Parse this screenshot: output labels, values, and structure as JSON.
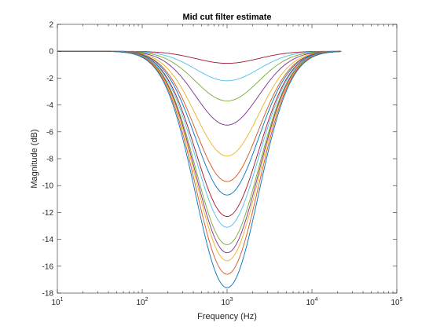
{
  "chart_data": {
    "type": "line",
    "title": "Mid cut filter estimate",
    "xlabel": "Frequency (Hz)",
    "ylabel": "Magnitude (dB)",
    "xscale": "log",
    "xlim": [
      10,
      100000
    ],
    "ylim": [
      -18,
      2
    ],
    "grid": false,
    "legend": "none",
    "xticks": [
      {
        "value": 10,
        "base": "10",
        "exp": "1"
      },
      {
        "value": 100,
        "base": "10",
        "exp": "2"
      },
      {
        "value": 1000,
        "base": "10",
        "exp": "3"
      },
      {
        "value": 10000,
        "base": "10",
        "exp": "4"
      },
      {
        "value": 100000,
        "base": "10",
        "exp": "5"
      }
    ],
    "yticks": [
      2,
      0,
      -2,
      -4,
      -6,
      -8,
      -10,
      -12,
      -14,
      -16,
      -18
    ],
    "x_start": 10,
    "x_end": 22050,
    "center_frequency": 1000,
    "series": [
      {
        "min_db": -0.9,
        "color": "#A2142F"
      },
      {
        "min_db": -2.2,
        "color": "#4DBEEE"
      },
      {
        "min_db": -3.7,
        "color": "#77AC30"
      },
      {
        "min_db": -5.5,
        "color": "#7E2F8E"
      },
      {
        "min_db": -7.8,
        "color": "#EDB120"
      },
      {
        "min_db": -9.7,
        "color": "#D95319"
      },
      {
        "min_db": -10.7,
        "color": "#0072BD"
      },
      {
        "min_db": -12.3,
        "color": "#A2142F"
      },
      {
        "min_db": -13.1,
        "color": "#4DBEEE"
      },
      {
        "min_db": -14.4,
        "color": "#77AC30"
      },
      {
        "min_db": -15.0,
        "color": "#7E2F8E"
      },
      {
        "min_db": -15.6,
        "color": "#EDB120"
      },
      {
        "min_db": -16.6,
        "color": "#D95319"
      },
      {
        "min_db": -17.6,
        "color": "#0072BD"
      }
    ]
  }
}
